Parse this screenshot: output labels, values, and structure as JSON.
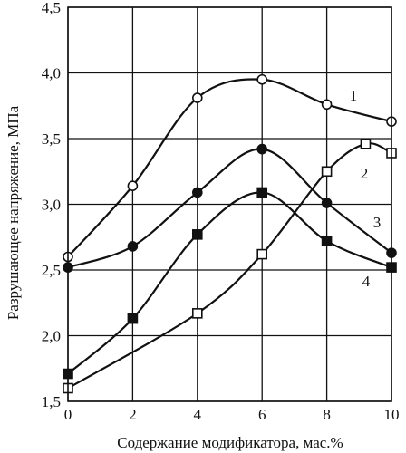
{
  "chart_data": {
    "type": "line",
    "title": "",
    "xlabel": "Содержание модификатора, мас.%",
    "ylabel": "Разрушающее напряжение, МПа",
    "xlim": [
      0,
      10
    ],
    "ylim": [
      1.5,
      4.5
    ],
    "x_ticks": [
      "0",
      "2",
      "4",
      "6",
      "8",
      "10"
    ],
    "y_ticks": [
      "1,5",
      "2,0",
      "2,5",
      "3,0",
      "3,5",
      "4,0",
      "4,5"
    ],
    "grid": true,
    "series": [
      {
        "name": "1",
        "marker": "open-circle",
        "x": [
          0,
          2,
          4,
          6,
          8,
          10
        ],
        "y": [
          2.6,
          3.14,
          3.81,
          3.95,
          3.76,
          3.63
        ]
      },
      {
        "name": "2",
        "marker": "open-square",
        "x": [
          0,
          4,
          6,
          8,
          9.2,
          10
        ],
        "y": [
          1.6,
          2.17,
          2.62,
          3.25,
          3.46,
          3.39
        ]
      },
      {
        "name": "3",
        "marker": "filled-circle",
        "x": [
          0,
          2,
          4,
          6,
          8,
          10
        ],
        "y": [
          2.52,
          2.68,
          3.09,
          3.42,
          3.01,
          2.63
        ]
      },
      {
        "name": "4",
        "marker": "filled-square",
        "x": [
          0,
          2,
          4,
          6,
          8,
          10
        ],
        "y": [
          1.71,
          2.13,
          2.77,
          3.09,
          2.72,
          2.52
        ]
      }
    ]
  },
  "colors": {
    "ink": "#111111",
    "background": "#ffffff"
  }
}
